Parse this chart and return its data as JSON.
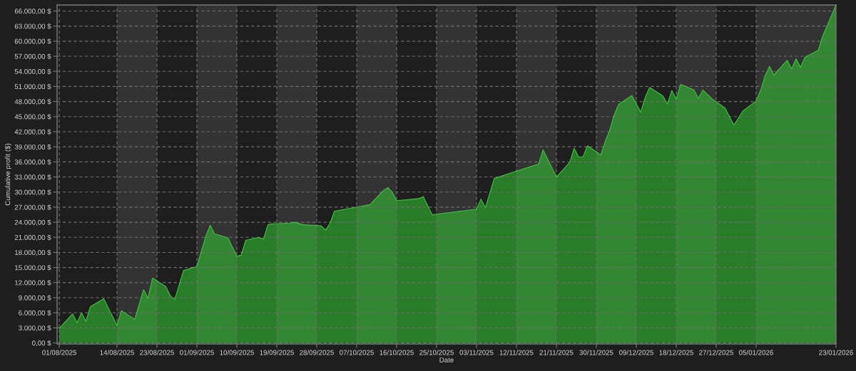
{
  "chart_data": {
    "type": "area",
    "xlabel": "Date",
    "ylabel": "Cumulative profit ($)",
    "x": [
      "2025-08-01",
      "2025-08-04",
      "2025-08-05",
      "2025-08-06",
      "2025-08-07",
      "2025-08-08",
      "2025-08-11",
      "2025-08-14",
      "2025-08-15",
      "2025-08-18",
      "2025-08-20",
      "2025-08-21",
      "2025-08-22",
      "2025-08-25",
      "2025-08-26",
      "2025-08-27",
      "2025-08-29",
      "2025-09-01",
      "2025-09-03",
      "2025-09-04",
      "2025-09-05",
      "2025-09-08",
      "2025-09-10",
      "2025-09-11",
      "2025-09-12",
      "2025-09-15",
      "2025-09-16",
      "2025-09-17",
      "2025-09-18",
      "2025-09-22",
      "2025-09-23",
      "2025-09-25",
      "2025-09-29",
      "2025-09-30",
      "2025-10-01",
      "2025-10-02",
      "2025-10-10",
      "2025-10-13",
      "2025-10-14",
      "2025-10-15",
      "2025-10-16",
      "2025-10-21",
      "2025-10-22",
      "2025-10-24",
      "2025-11-03",
      "2025-11-04",
      "2025-11-05",
      "2025-11-07",
      "2025-11-17",
      "2025-11-18",
      "2025-11-21",
      "2025-11-24",
      "2025-11-25",
      "2025-11-26",
      "2025-11-27",
      "2025-11-28",
      "2025-12-01",
      "2025-12-02",
      "2025-12-03",
      "2025-12-04",
      "2025-12-05",
      "2025-12-08",
      "2025-12-10",
      "2025-12-11",
      "2025-12-12",
      "2025-12-15",
      "2025-12-16",
      "2025-12-17",
      "2025-12-18",
      "2025-12-19",
      "2025-12-22",
      "2025-12-23",
      "2025-12-24",
      "2025-12-26",
      "2025-12-29",
      "2025-12-31",
      "2026-01-02",
      "2026-01-05",
      "2026-01-06",
      "2026-01-07",
      "2026-01-08",
      "2026-01-09",
      "2026-01-12",
      "2026-01-13",
      "2026-01-14",
      "2026-01-15",
      "2026-01-16",
      "2026-01-19",
      "2026-01-20",
      "2026-01-23"
    ],
    "series": [
      {
        "color": "#33cc33",
        "values": [
          2900,
          5800,
          4000,
          6000,
          4300,
          7200,
          8800,
          3500,
          6400,
          4700,
          10600,
          8900,
          12900,
          11200,
          9400,
          8600,
          14400,
          15200,
          21200,
          23400,
          21700,
          20900,
          17200,
          17500,
          20400,
          21000,
          20600,
          23500,
          23700,
          23800,
          24000,
          23500,
          23300,
          22400,
          23800,
          26200,
          27500,
          30300,
          30900,
          30000,
          28300,
          28700,
          29100,
          25500,
          26600,
          28600,
          26900,
          32700,
          35600,
          38400,
          33000,
          35900,
          38700,
          37000,
          37000,
          39200,
          37400,
          40100,
          42300,
          45300,
          47400,
          49200,
          45900,
          48800,
          50800,
          49100,
          47500,
          50200,
          48500,
          51400,
          50300,
          48600,
          50300,
          48600,
          46700,
          43300,
          46100,
          48100,
          50200,
          53100,
          55000,
          53300,
          56200,
          54500,
          56500,
          54800,
          56800,
          58200,
          61000,
          67200
        ]
      }
    ],
    "xlim": [
      "2025-07-31T12:00",
      "2026-01-23"
    ],
    "ylim": [
      -200,
      67200
    ],
    "xticks": [
      {
        "value": "2025-08-01",
        "label": "01/08/2025"
      },
      {
        "value": "2025-08-14",
        "label": "14/08/2025"
      },
      {
        "value": "2025-08-23",
        "label": "23/08/2025"
      },
      {
        "value": "2025-09-01",
        "label": "01/09/2025"
      },
      {
        "value": "2025-09-10",
        "label": "10/09/2025"
      },
      {
        "value": "2025-09-19",
        "label": "19/09/2025"
      },
      {
        "value": "2025-09-28",
        "label": "28/09/2025"
      },
      {
        "value": "2025-10-07",
        "label": "07/10/2025"
      },
      {
        "value": "2025-10-16",
        "label": "16/10/2025"
      },
      {
        "value": "2025-10-25",
        "label": "25/10/2025"
      },
      {
        "value": "2025-11-03",
        "label": "03/11/2025"
      },
      {
        "value": "2025-11-12",
        "label": "12/11/2025"
      },
      {
        "value": "2025-11-21",
        "label": "21/11/2025"
      },
      {
        "value": "2025-11-30",
        "label": "30/11/2025"
      },
      {
        "value": "2025-12-09",
        "label": "09/12/2025"
      },
      {
        "value": "2025-12-18",
        "label": "18/12/2025"
      },
      {
        "value": "2025-12-27",
        "label": "27/12/2025"
      },
      {
        "value": "2026-01-05",
        "label": "05/01/2026"
      },
      {
        "value": "2026-01-23",
        "label": "23/01/2026"
      }
    ],
    "yticks": [
      {
        "value": 0,
        "label": "0,00 $"
      },
      {
        "value": 3000,
        "label": "3.000,00 $"
      },
      {
        "value": 6000,
        "label": "6.000,00 $"
      },
      {
        "value": 9000,
        "label": "9.000,00 $"
      },
      {
        "value": 12000,
        "label": "12.000,00 $"
      },
      {
        "value": 15000,
        "label": "15.000,00 $"
      },
      {
        "value": 18000,
        "label": "18.000,00 $"
      },
      {
        "value": 21000,
        "label": "21.000,00 $"
      },
      {
        "value": 24000,
        "label": "24.000,00 $"
      },
      {
        "value": 27000,
        "label": "27.000,00 $"
      },
      {
        "value": 30000,
        "label": "30.000,00 $"
      },
      {
        "value": 33000,
        "label": "33.000,00 $"
      },
      {
        "value": 36000,
        "label": "36.000,00 $"
      },
      {
        "value": 39000,
        "label": "39.000,00 $"
      },
      {
        "value": 42000,
        "label": "42.000,00 $"
      },
      {
        "value": 45000,
        "label": "45.000,00 $"
      },
      {
        "value": 48000,
        "label": "48.000,00 $"
      },
      {
        "value": 51000,
        "label": "51.000,00 $"
      },
      {
        "value": 54000,
        "label": "54.000,00 $"
      },
      {
        "value": 57000,
        "label": "57.000,00 $"
      },
      {
        "value": 60000,
        "label": "60.000,00 $"
      },
      {
        "value": 63000,
        "label": "63.000,00 $"
      },
      {
        "value": 66000,
        "label": "66.000,00 $"
      }
    ],
    "grid": true,
    "bands": [
      {
        "axis": "x",
        "from": "2025-08-14",
        "to": "2025-08-23",
        "color": "#333333"
      },
      {
        "axis": "x",
        "from": "2025-09-01",
        "to": "2025-09-10",
        "color": "#333333"
      },
      {
        "axis": "x",
        "from": "2025-09-19",
        "to": "2025-09-28",
        "color": "#333333"
      },
      {
        "axis": "x",
        "from": "2025-10-07",
        "to": "2025-10-16",
        "color": "#333333"
      },
      {
        "axis": "x",
        "from": "2025-10-25",
        "to": "2025-11-03",
        "color": "#333333"
      },
      {
        "axis": "x",
        "from": "2025-11-12",
        "to": "2025-11-21",
        "color": "#333333"
      },
      {
        "axis": "x",
        "from": "2025-11-30",
        "to": "2025-12-09",
        "color": "#333333"
      },
      {
        "axis": "x",
        "from": "2025-12-18",
        "to": "2025-12-27",
        "color": "#333333"
      },
      {
        "axis": "x",
        "from": "2026-01-05",
        "to": "2026-01-23",
        "color": "#333333"
      }
    ]
  }
}
